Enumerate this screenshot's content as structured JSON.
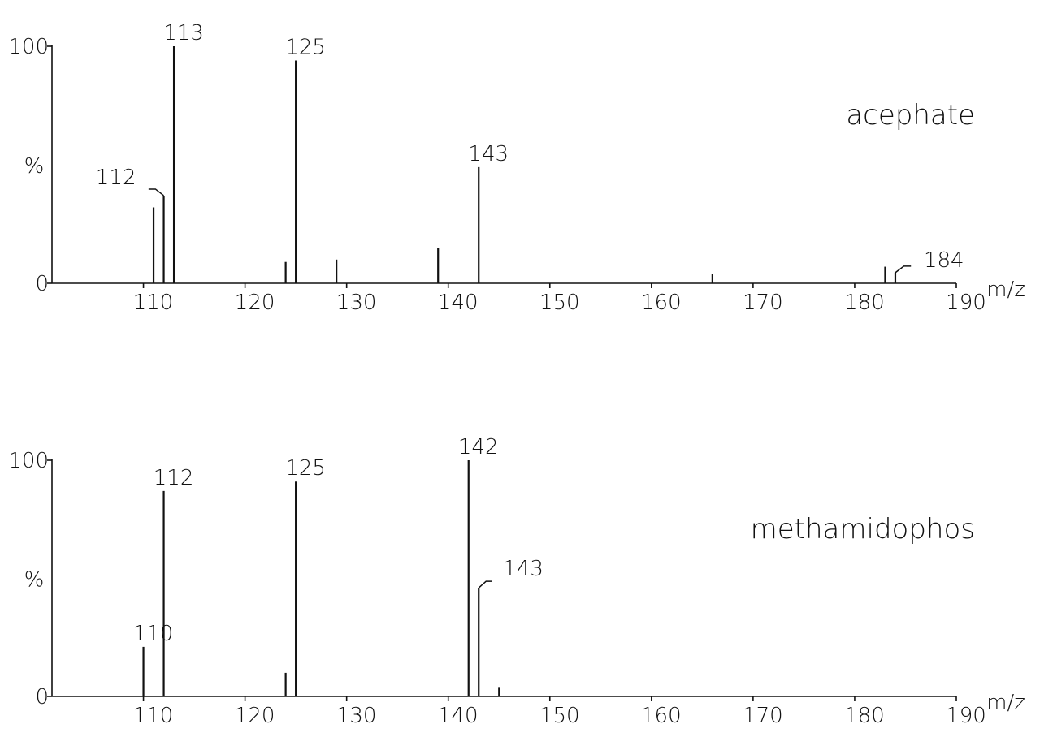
{
  "chart_data": [
    {
      "type": "spectrum",
      "annotation": "acephate",
      "x_label": "m/z",
      "y_label": "%",
      "x": [
        111,
        112,
        113,
        124,
        125,
        129,
        139,
        143,
        166,
        183,
        184
      ],
      "values": [
        32,
        37,
        100,
        9,
        94,
        10,
        15,
        49,
        4,
        7,
        4.5
      ],
      "peak_labels": [
        null,
        "112",
        "113",
        null,
        "125",
        null,
        null,
        "143",
        null,
        null,
        "184"
      ],
      "color": "#111111",
      "xlim": [
        101,
        190
      ],
      "xticks": [
        110,
        120,
        130,
        140,
        150,
        160,
        170,
        180,
        190
      ],
      "ylim": [
        0,
        100
      ],
      "yticks": [
        0,
        100
      ]
    },
    {
      "type": "spectrum",
      "annotation": "methamidophos",
      "x_label": "m/z",
      "y_label": "%",
      "x": [
        110,
        112,
        124,
        125,
        142,
        143,
        145
      ],
      "values": [
        21,
        87,
        10,
        91,
        100,
        46,
        4
      ],
      "peak_labels": [
        "110",
        "112",
        null,
        "125",
        "142",
        "143",
        null
      ],
      "color": "#111111",
      "xlim": [
        101,
        190
      ],
      "xticks": [
        110,
        120,
        130,
        140,
        150,
        160,
        170,
        180,
        190
      ],
      "ylim": [
        0,
        100
      ],
      "yticks": [
        0,
        100
      ]
    }
  ]
}
